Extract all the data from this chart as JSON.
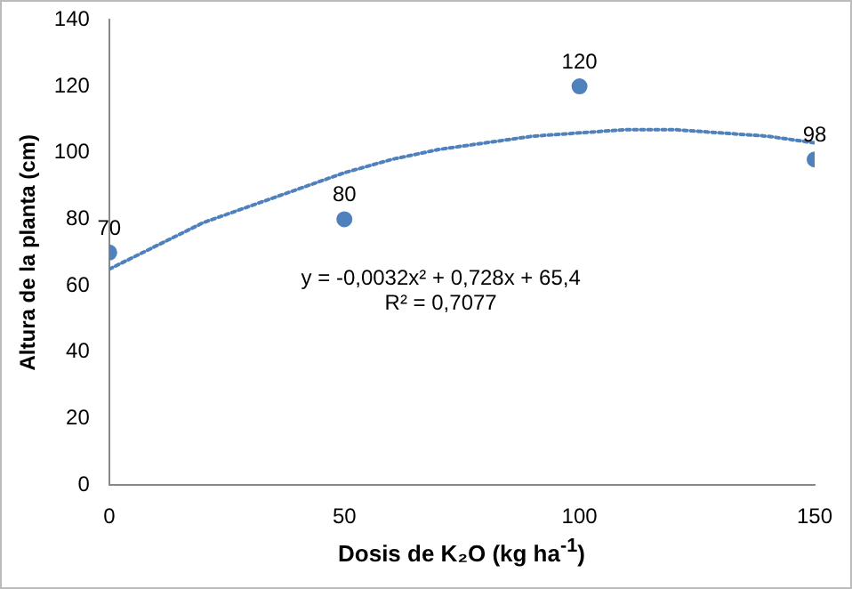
{
  "chart_data": {
    "type": "scatter",
    "xlabel": "Dosis  de K₂O (kg ha$^{-1}$)",
    "ylabel": "Altura de la planta (cm)",
    "x": [
      0,
      50,
      100,
      150
    ],
    "series": [
      {
        "color": "#4f81bd",
        "values": [
          70,
          80,
          120,
          98
        ],
        "value_labels": [
          "70",
          "80",
          "120",
          "98"
        ],
        "marker": "circle"
      },
      {
        "type": "line",
        "color": "#4f81bd",
        "line_style": "dotted",
        "marker": "none",
        "x": [
          0,
          10,
          20,
          30,
          40,
          50,
          60,
          70,
          80,
          90,
          100,
          110,
          120,
          130,
          140,
          150
        ],
        "values": [
          65,
          72,
          79,
          84,
          89,
          94,
          98,
          101,
          103,
          105,
          106,
          107,
          107,
          106,
          105,
          103
        ]
      }
    ],
    "xlim": [
      0,
      150
    ],
    "xticks": [
      0,
      50,
      100,
      150
    ],
    "ylim": [
      0,
      140
    ],
    "yticks": [
      0,
      20,
      40,
      60,
      80,
      100,
      120,
      140
    ],
    "grid": false,
    "legend": false,
    "annotations": [
      "y = -0,0032x² + 0,728x + 65,4",
      "R² = 0,7077"
    ]
  }
}
